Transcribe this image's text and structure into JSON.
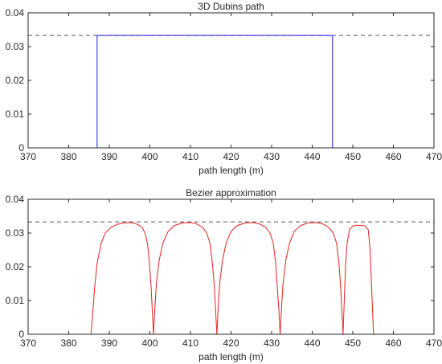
{
  "chart_data": [
    {
      "type": "line",
      "title": "3D Dubins path",
      "xlabel": "path length (m)",
      "ylabel": "",
      "xlim": [
        370,
        470
      ],
      "ylim": [
        0,
        0.04
      ],
      "xticks": [
        370,
        380,
        390,
        400,
        410,
        420,
        430,
        440,
        450,
        460,
        470
      ],
      "yticks": [
        0,
        0.01,
        0.02,
        0.03,
        0.04
      ],
      "xtick_labels": [
        "370",
        "380",
        "390",
        "400",
        "410",
        "420",
        "430",
        "440",
        "450",
        "460",
        "470"
      ],
      "ytick_labels": [
        "0",
        "0.01",
        "0.02",
        "0.03",
        "0.04"
      ],
      "grid": false,
      "reference_line": {
        "y": 0.0333,
        "style": "dashed",
        "color": "#555555"
      },
      "series": [
        {
          "color": "#1f1fe6",
          "x": [
            370,
            387,
            387,
            445,
            445,
            470
          ],
          "y": [
            0,
            0,
            0.0333,
            0.0333,
            0,
            0
          ]
        }
      ]
    },
    {
      "type": "line",
      "title": "Bezier approximation",
      "xlabel": "path length (m)",
      "ylabel": "",
      "xlim": [
        370,
        470
      ],
      "ylim": [
        0,
        0.04
      ],
      "xticks": [
        370,
        380,
        390,
        400,
        410,
        420,
        430,
        440,
        450,
        460,
        470
      ],
      "yticks": [
        0,
        0.01,
        0.02,
        0.03,
        0.04
      ],
      "xtick_labels": [
        "370",
        "380",
        "390",
        "400",
        "410",
        "420",
        "430",
        "440",
        "450",
        "460",
        "470"
      ],
      "ytick_labels": [
        "0",
        "0.01",
        "0.02",
        "0.03",
        "0.04"
      ],
      "grid": false,
      "reference_line": {
        "y": 0.0333,
        "style": "dashed",
        "color": "#555555"
      },
      "series": [
        {
          "color": "#e62020",
          "segments": [
            {
              "x": [
                370,
                385.5
              ],
              "y": [
                0,
                0
              ]
            },
            {
              "x": [
                385.5,
                385.9,
                386.4,
                387,
                388,
                389,
                390.5,
                392,
                393.5,
                395,
                396.5,
                398,
                398.8,
                399.4,
                399.9,
                400.3,
                400.6,
                400.9
              ],
              "y": [
                0,
                0.006,
                0.014,
                0.021,
                0.027,
                0.03,
                0.0318,
                0.0326,
                0.033,
                0.0331,
                0.0328,
                0.0318,
                0.03,
                0.027,
                0.021,
                0.014,
                0.007,
                0
              ]
            },
            {
              "x": [
                400.9,
                401.2,
                401.6,
                402.3,
                403.2,
                404.5,
                406,
                408,
                410,
                411.5,
                413,
                414,
                414.8,
                415.4,
                415.9,
                416.2,
                416.5
              ],
              "y": [
                0,
                0.007,
                0.015,
                0.022,
                0.027,
                0.0305,
                0.0322,
                0.033,
                0.0331,
                0.0327,
                0.0317,
                0.03,
                0.027,
                0.021,
                0.014,
                0.007,
                0
              ]
            },
            {
              "x": [
                416.5,
                416.8,
                417.2,
                417.9,
                418.8,
                420,
                421.5,
                423.5,
                425.5,
                427,
                428.5,
                429.6,
                430.4,
                431,
                431.4,
                431.8,
                432.1
              ],
              "y": [
                0,
                0.007,
                0.015,
                0.022,
                0.027,
                0.0305,
                0.0322,
                0.033,
                0.0331,
                0.0327,
                0.0317,
                0.03,
                0.027,
                0.021,
                0.014,
                0.007,
                0
              ]
            },
            {
              "x": [
                432.1,
                432.4,
                432.8,
                433.5,
                434.4,
                435.6,
                437.1,
                439,
                441,
                442.6,
                444,
                445.2,
                446,
                446.6,
                447,
                447.3,
                447.6
              ],
              "y": [
                0,
                0.007,
                0.015,
                0.022,
                0.027,
                0.0305,
                0.0322,
                0.033,
                0.0331,
                0.0327,
                0.0317,
                0.03,
                0.027,
                0.021,
                0.014,
                0.007,
                0
              ]
            },
            {
              "x": [
                447.6,
                447.9,
                448.2,
                448.6,
                449.2,
                450,
                451,
                452,
                453,
                453.8,
                454.2,
                454.5,
                454.8,
                455.1
              ],
              "y": [
                0,
                0.01,
                0.02,
                0.027,
                0.031,
                0.0321,
                0.0323,
                0.0323,
                0.0321,
                0.031,
                0.026,
                0.018,
                0.009,
                0
              ]
            },
            {
              "x": [
                455.1,
                470
              ],
              "y": [
                0,
                0
              ]
            }
          ]
        }
      ]
    }
  ]
}
